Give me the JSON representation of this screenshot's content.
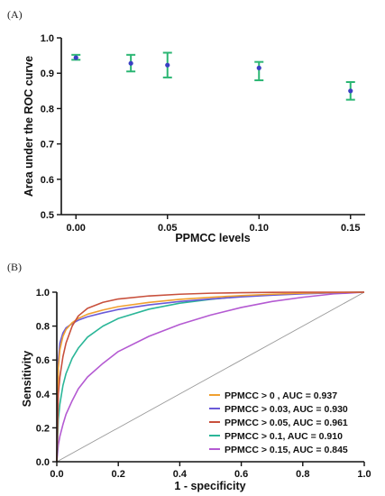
{
  "panels": {
    "a_label": "(A)",
    "b_label": "(B)"
  },
  "chart_data": [
    {
      "type": "scatter",
      "title": "",
      "xlabel": "PPMCC levels",
      "ylabel": "Area under the ROC curve",
      "x_tick_labels": [
        "0.00",
        "0.05",
        "0.10",
        "0.15"
      ],
      "y_tick_labels": [
        "0.5",
        "0.6",
        "0.7",
        "0.8",
        "0.9",
        "1.0"
      ],
      "xlim": [
        -0.008,
        0.158
      ],
      "ylim": [
        0.5,
        1.0
      ],
      "points": [
        {
          "x": 0.0,
          "y": 0.944,
          "err_low": 0.938,
          "err_high": 0.952
        },
        {
          "x": 0.03,
          "y": 0.928,
          "err_low": 0.905,
          "err_high": 0.952
        },
        {
          "x": 0.05,
          "y": 0.923,
          "err_low": 0.888,
          "err_high": 0.958
        },
        {
          "x": 0.1,
          "y": 0.915,
          "err_low": 0.88,
          "err_high": 0.932
        },
        {
          "x": 0.15,
          "y": 0.85,
          "err_low": 0.825,
          "err_high": 0.875
        }
      ],
      "marker_color": "#3a3fc4",
      "errorbar_color": "#2bb673"
    },
    {
      "type": "line",
      "title": "",
      "xlabel": "1 - specificity",
      "ylabel": "Sensitivity",
      "x_tick_labels": [
        "0.0",
        "0.2",
        "0.4",
        "0.6",
        "0.8",
        "1.0"
      ],
      "y_tick_labels": [
        "0.0",
        "0.2",
        "0.4",
        "0.6",
        "0.8",
        "1.0"
      ],
      "xlim": [
        0,
        1
      ],
      "ylim": [
        0,
        1
      ],
      "diagonal_color": "#9a9a9a",
      "legend_position": "bottom-right",
      "series": [
        {
          "name": "PPMCC > 0 , AUC = 0.937",
          "color": "#f0a030",
          "auc": 0.937,
          "x": [
            0,
            0.005,
            0.01,
            0.02,
            0.03,
            0.05,
            0.07,
            0.1,
            0.15,
            0.2,
            0.3,
            0.4,
            0.5,
            0.6,
            0.7,
            0.8,
            0.9,
            1.0
          ],
          "y": [
            0,
            0.55,
            0.66,
            0.74,
            0.78,
            0.82,
            0.845,
            0.87,
            0.895,
            0.915,
            0.94,
            0.958,
            0.97,
            0.98,
            0.988,
            0.994,
            0.998,
            1.0
          ]
        },
        {
          "name": "PPMCC > 0.03, AUC = 0.930",
          "color": "#6a5ad8",
          "auc": 0.93,
          "x": [
            0,
            0.005,
            0.01,
            0.02,
            0.03,
            0.05,
            0.07,
            0.1,
            0.15,
            0.2,
            0.3,
            0.4,
            0.5,
            0.6,
            0.7,
            0.8,
            0.9,
            1.0
          ],
          "y": [
            0,
            0.6,
            0.7,
            0.76,
            0.79,
            0.815,
            0.835,
            0.855,
            0.878,
            0.898,
            0.925,
            0.945,
            0.96,
            0.972,
            0.982,
            0.99,
            0.996,
            1.0
          ]
        },
        {
          "name": "PPMCC > 0.05, AUC = 0.961",
          "color": "#c8503c",
          "auc": 0.961,
          "x": [
            0,
            0.005,
            0.01,
            0.02,
            0.03,
            0.05,
            0.07,
            0.1,
            0.15,
            0.2,
            0.3,
            0.4,
            0.5,
            0.6,
            0.7,
            0.8,
            0.9,
            1.0
          ],
          "y": [
            0,
            0.4,
            0.5,
            0.62,
            0.7,
            0.8,
            0.86,
            0.905,
            0.94,
            0.96,
            0.978,
            0.988,
            0.994,
            0.997,
            0.999,
            1.0,
            1.0,
            1.0
          ]
        },
        {
          "name": "PPMCC > 0.1, AUC = 0.910",
          "color": "#2bb698",
          "auc": 0.91,
          "x": [
            0,
            0.005,
            0.01,
            0.02,
            0.03,
            0.05,
            0.07,
            0.1,
            0.15,
            0.2,
            0.3,
            0.4,
            0.5,
            0.6,
            0.7,
            0.8,
            0.9,
            1.0
          ],
          "y": [
            0,
            0.25,
            0.34,
            0.45,
            0.52,
            0.61,
            0.67,
            0.735,
            0.8,
            0.845,
            0.9,
            0.935,
            0.958,
            0.975,
            0.986,
            0.993,
            0.998,
            1.0
          ]
        },
        {
          "name": "PPMCC > 0.15, AUC = 0.845",
          "color": "#b45ad2",
          "auc": 0.845,
          "x": [
            0,
            0.005,
            0.01,
            0.02,
            0.03,
            0.05,
            0.07,
            0.1,
            0.15,
            0.2,
            0.3,
            0.4,
            0.5,
            0.6,
            0.7,
            0.8,
            0.9,
            1.0
          ],
          "y": [
            0,
            0.1,
            0.15,
            0.22,
            0.28,
            0.36,
            0.43,
            0.5,
            0.58,
            0.65,
            0.74,
            0.81,
            0.865,
            0.91,
            0.945,
            0.97,
            0.99,
            1.0
          ]
        }
      ]
    }
  ]
}
